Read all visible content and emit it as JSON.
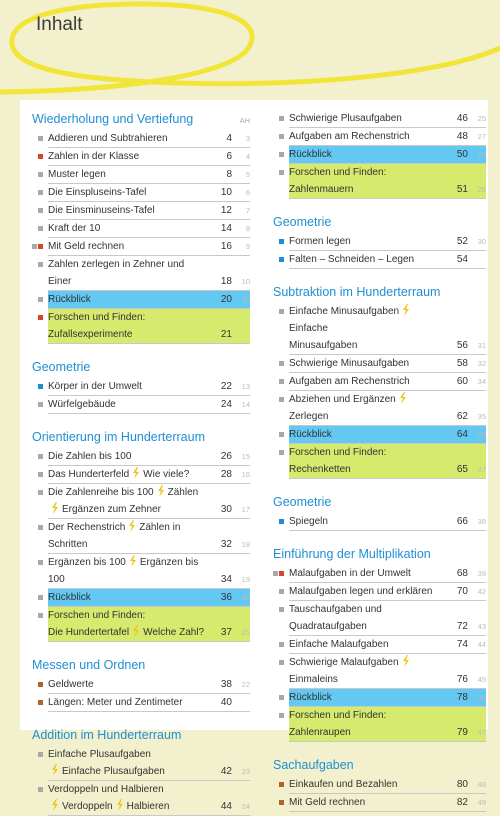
{
  "header": {
    "title": "Inhalt"
  },
  "columns": [
    {
      "sections": [
        {
          "title": "Wiederholung und Vertiefung",
          "ah_label": "AH",
          "entries": [
            {
              "lines": [
                [
                  "Addieren und Subtrahieren"
                ]
              ],
              "page": 4,
              "ah": 3,
              "markers": [
                "gray"
              ]
            },
            {
              "lines": [
                [
                  "Zahlen in der Klasse"
                ]
              ],
              "page": 6,
              "ah": 4,
              "markers": [
                "red"
              ]
            },
            {
              "lines": [
                [
                  "Muster legen"
                ]
              ],
              "page": 8,
              "ah": 5,
              "markers": [
                "gray"
              ]
            },
            {
              "lines": [
                [
                  "Die Einspluseins-Tafel"
                ]
              ],
              "page": 10,
              "ah": 6,
              "markers": [
                "gray"
              ]
            },
            {
              "lines": [
                [
                  "Die Einsminuseins-Tafel"
                ]
              ],
              "page": 12,
              "ah": 7,
              "markers": [
                "gray"
              ]
            },
            {
              "lines": [
                [
                  "Kraft der 10"
                ]
              ],
              "page": 14,
              "ah": 8,
              "markers": [
                "gray"
              ]
            },
            {
              "lines": [
                [
                  "Mit Geld rechnen"
                ]
              ],
              "page": 16,
              "ah": 9,
              "markers": [
                "gray",
                "red"
              ]
            },
            {
              "lines": [
                [
                  "Zahlen zerlegen in Zehner und Einer"
                ]
              ],
              "page": 18,
              "ah": 10,
              "markers": [
                "gray"
              ]
            },
            {
              "lines": [
                [
                  "Rückblick"
                ]
              ],
              "page": 20,
              "ah": 11,
              "markers": [
                "gray"
              ],
              "highlight": "blue"
            },
            {
              "lines": [
                [
                  "Forschen und Finden:"
                ],
                [
                  "Zufallsexperimente"
                ]
              ],
              "page": 21,
              "markers": [
                "red"
              ],
              "highlight": "green"
            }
          ]
        },
        {
          "title": "Geometrie",
          "entries": [
            {
              "lines": [
                [
                  "Körper in der Umwelt"
                ]
              ],
              "page": 22,
              "ah": 13,
              "markers": [
                "blue"
              ]
            },
            {
              "lines": [
                [
                  "Würfelgebäude"
                ]
              ],
              "page": 24,
              "ah": 14,
              "markers": [
                "gray"
              ]
            }
          ]
        },
        {
          "title": "Orientierung im Hunderterraum",
          "entries": [
            {
              "lines": [
                [
                  "Die Zahlen bis 100"
                ]
              ],
              "page": 26,
              "ah": 15,
              "markers": [
                "gray"
              ]
            },
            {
              "lines": [
                [
                  "Das Hunderterfeld",
                  "Wie viele?"
                ]
              ],
              "page": 28,
              "ah": 16,
              "markers": [
                "gray"
              ]
            },
            {
              "lines": [
                [
                  "Die Zahlenreihe bis 100",
                  "Zählen"
                ],
                [
                  "Ergänzen zum Zehner"
                ]
              ],
              "icon_lines": [
                1
              ],
              "page": 30,
              "ah": 17,
              "markers": [
                "gray"
              ]
            },
            {
              "lines": [
                [
                  "Der Rechenstrich",
                  "Zählen in Schritten"
                ]
              ],
              "page": 32,
              "ah": 18,
              "markers": [
                "gray"
              ]
            },
            {
              "lines": [
                [
                  "Ergänzen bis 100",
                  "Ergänzen bis 100"
                ]
              ],
              "page": 34,
              "ah": 19,
              "markers": [
                "gray"
              ]
            },
            {
              "lines": [
                [
                  "Rückblick"
                ]
              ],
              "page": 36,
              "ah": 20,
              "markers": [
                "gray"
              ],
              "highlight": "blue"
            },
            {
              "lines": [
                [
                  "Forschen und Finden:"
                ],
                [
                  "Die Hundertertafel",
                  "Welche Zahl?"
                ]
              ],
              "page": 37,
              "ah": 21,
              "markers": [
                "gray"
              ],
              "highlight": "green"
            }
          ]
        },
        {
          "title": "Messen und Ordnen",
          "entries": [
            {
              "lines": [
                [
                  "Geldwerte"
                ]
              ],
              "page": 38,
              "ah": 22,
              "markers": [
                "brown"
              ]
            },
            {
              "lines": [
                [
                  "Längen: Meter und Zentimeter"
                ]
              ],
              "page": 40,
              "markers": [
                "brown"
              ]
            }
          ]
        },
        {
          "title": "Addition im Hunderterraum",
          "entries": [
            {
              "lines": [
                [
                  "Einfache Plusaufgaben"
                ],
                [
                  "Einfache Plusaufgaben"
                ]
              ],
              "icon_lines": [
                1
              ],
              "page": 42,
              "ah": 23,
              "markers": [
                "gray"
              ]
            },
            {
              "lines": [
                [
                  "Verdoppeln und Halbieren"
                ],
                [
                  "Verdoppeln",
                  "Halbieren"
                ]
              ],
              "icon_lines": [
                1
              ],
              "page": 44,
              "ah": 24,
              "markers": [
                "gray"
              ]
            }
          ]
        }
      ]
    },
    {
      "sections": [
        {
          "entries": [
            {
              "lines": [
                [
                  "Schwierige Plusaufgaben"
                ]
              ],
              "page": 46,
              "ah": 25,
              "markers": [
                "gray"
              ]
            },
            {
              "lines": [
                [
                  "Aufgaben am Rechenstrich"
                ]
              ],
              "page": 48,
              "ah": 27,
              "markers": [
                "gray"
              ]
            },
            {
              "lines": [
                [
                  "Rückblick"
                ]
              ],
              "page": 50,
              "ah": 28,
              "markers": [
                "gray"
              ],
              "highlight": "blue"
            },
            {
              "lines": [
                [
                  "Forschen und Finden: Zahlenmauern"
                ]
              ],
              "page": 51,
              "ah": 29,
              "markers": [
                "gray"
              ],
              "highlight": "green"
            }
          ]
        },
        {
          "title": "Geometrie",
          "entries": [
            {
              "lines": [
                [
                  "Formen legen"
                ]
              ],
              "page": 52,
              "ah": 30,
              "markers": [
                "blue"
              ]
            },
            {
              "lines": [
                [
                  "Falten – Schneiden – Legen"
                ]
              ],
              "page": 54,
              "markers": [
                "blue"
              ]
            }
          ]
        },
        {
          "title": "Subtraktion im Hunderterraum",
          "entries": [
            {
              "lines": [
                [
                  "Einfache Minusaufgaben",
                  "Einfache"
                ],
                [
                  "Minusaufgaben"
                ]
              ],
              "page": 56,
              "ah": 31,
              "markers": [
                "gray"
              ]
            },
            {
              "lines": [
                [
                  "Schwierige Minusaufgaben"
                ]
              ],
              "page": 58,
              "ah": 32,
              "markers": [
                "gray"
              ]
            },
            {
              "lines": [
                [
                  "Aufgaben am Rechenstrich"
                ]
              ],
              "page": 60,
              "ah": 34,
              "markers": [
                "gray"
              ]
            },
            {
              "lines": [
                [
                  "Abziehen und Ergänzen",
                  "Zerlegen"
                ]
              ],
              "page": 62,
              "ah": 35,
              "markers": [
                "gray"
              ]
            },
            {
              "lines": [
                [
                  "Rückblick"
                ]
              ],
              "page": 64,
              "ah": 36,
              "markers": [
                "gray"
              ],
              "highlight": "blue"
            },
            {
              "lines": [
                [
                  "Forschen und Finden: Rechenketten"
                ]
              ],
              "page": 65,
              "ah": 37,
              "markers": [
                "gray"
              ],
              "highlight": "green"
            }
          ]
        },
        {
          "title": "Geometrie",
          "entries": [
            {
              "lines": [
                [
                  "Spiegeln"
                ]
              ],
              "page": 66,
              "ah": 38,
              "markers": [
                "blue"
              ]
            }
          ]
        },
        {
          "title": "Einführung der Multiplikation",
          "entries": [
            {
              "lines": [
                [
                  "Malaufgaben in der Umwelt"
                ]
              ],
              "page": 68,
              "ah": 39,
              "markers": [
                "gray",
                "red"
              ]
            },
            {
              "lines": [
                [
                  "Malaufgaben legen und erklären"
                ]
              ],
              "page": 70,
              "ah": 42,
              "markers": [
                "gray"
              ]
            },
            {
              "lines": [
                [
                  "Tauschaufgaben und Quadrataufgaben"
                ]
              ],
              "page": 72,
              "ah": 43,
              "markers": [
                "gray"
              ]
            },
            {
              "lines": [
                [
                  "Einfache Malaufgaben"
                ]
              ],
              "page": 74,
              "ah": 44,
              "markers": [
                "gray"
              ]
            },
            {
              "lines": [
                [
                  "Schwierige Malaufgaben",
                  "Einmaleins"
                ]
              ],
              "page": 76,
              "ah": 45,
              "markers": [
                "gray"
              ]
            },
            {
              "lines": [
                [
                  "Rückblick"
                ]
              ],
              "page": 78,
              "ah": 46,
              "markers": [
                "gray"
              ],
              "highlight": "blue"
            },
            {
              "lines": [
                [
                  "Forschen und Finden: Zahlenraupen"
                ]
              ],
              "page": 79,
              "ah": 47,
              "markers": [
                "gray"
              ],
              "highlight": "green"
            }
          ]
        },
        {
          "title": "Sachaufgaben",
          "entries": [
            {
              "lines": [
                [
                  "Einkaufen und Bezahlen"
                ]
              ],
              "page": 80,
              "ah": 48,
              "markers": [
                "brown"
              ]
            },
            {
              "lines": [
                [
                  "Mit Geld rechnen"
                ]
              ],
              "page": 82,
              "ah": 49,
              "markers": [
                "brown"
              ]
            }
          ]
        }
      ]
    }
  ]
}
